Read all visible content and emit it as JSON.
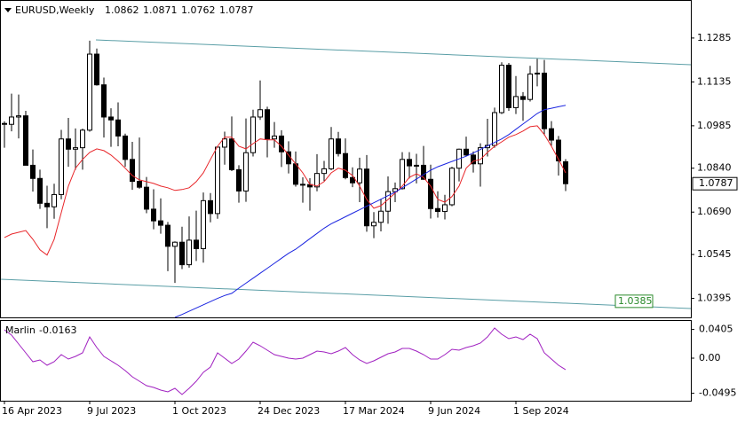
{
  "chart_data": [
    {
      "type": "candlestick",
      "title": "EURUSD,Weekly",
      "categories": [
        "16 Apr 2023",
        null,
        null,
        null,
        null,
        null,
        null,
        null,
        null,
        null,
        null,
        null,
        "9 Jul 2023",
        null,
        null,
        null,
        null,
        null,
        null,
        null,
        null,
        null,
        null,
        null,
        "1 Oct 2023",
        null,
        null,
        null,
        null,
        null,
        null,
        null,
        null,
        null,
        null,
        null,
        "24 Dec 2023",
        null,
        null,
        null,
        null,
        null,
        null,
        null,
        null,
        null,
        null,
        null,
        "17 Mar 2024",
        null,
        null,
        null,
        null,
        null,
        null,
        null,
        null,
        null,
        null,
        null,
        "9 Jun 2024",
        null,
        null,
        null,
        null,
        null,
        null,
        null,
        null,
        null,
        null,
        null,
        "1 Sep 2024",
        null,
        null,
        null,
        null,
        null,
        null,
        null
      ],
      "open": [
        1.0993,
        1.099,
        1.1015,
        1.1019,
        1.085,
        1.0805,
        1.072,
        1.0708,
        1.075,
        1.094,
        1.0905,
        1.091,
        1.097,
        1.123,
        1.1125,
        1.1015,
        1.1005,
        1.095,
        1.087,
        1.0795,
        1.0775,
        1.07,
        1.066,
        1.0645,
        1.0573,
        1.0587,
        1.051,
        1.0594,
        1.0565,
        1.0729,
        1.0685,
        1.0912,
        1.094,
        1.0835,
        1.0762,
        1.0893,
        1.1015,
        1.104,
        1.094,
        1.095,
        1.0896,
        1.0855,
        1.0785,
        1.0784,
        1.0776,
        1.0822,
        1.0838,
        1.094,
        1.089,
        1.0808,
        1.079,
        1.0837,
        1.0643,
        1.0655,
        1.0693,
        1.076,
        1.077,
        1.087,
        1.0848,
        1.085,
        1.0802,
        1.0702,
        1.0692,
        1.0715,
        1.084,
        1.0905,
        1.0885,
        1.0855,
        1.091,
        1.0918,
        1.103,
        1.1192,
        1.1047,
        1.1085,
        1.1075,
        1.1162,
        1.1165,
        1.0975,
        1.0936,
        1.0862
      ],
      "high": [
        1.1,
        1.1095,
        1.1092,
        1.1036,
        1.0904,
        1.0835,
        1.078,
        1.0787,
        1.0971,
        1.1012,
        1.0976,
        1.0975,
        1.1276,
        1.1249,
        1.115,
        1.1045,
        1.1065,
        1.0958,
        1.093,
        1.0945,
        1.081,
        1.0768,
        1.0737,
        1.0656,
        1.059,
        1.064,
        1.0675,
        1.0695,
        1.0757,
        1.0755,
        1.0914,
        1.0965,
        1.1017,
        1.085,
        1.101,
        1.104,
        1.114,
        1.105,
        1.0998,
        1.097,
        1.0932,
        1.0897,
        1.0809,
        1.0806,
        1.0888,
        1.0865,
        1.0981,
        1.0964,
        1.0942,
        1.0843,
        1.0876,
        1.0885,
        1.069,
        1.0735,
        1.0812,
        1.0791,
        1.0895,
        1.0895,
        1.0889,
        1.0916,
        1.0852,
        1.0761,
        1.0749,
        1.0845,
        1.0907,
        1.0948,
        1.0897,
        1.0925,
        1.1009,
        1.1047,
        1.1202,
        1.12,
        1.1155,
        1.11,
        1.119,
        1.1214,
        1.121,
        1.1001,
        1.095,
        1.0871
      ],
      "low": [
        1.091,
        1.0966,
        1.0942,
        1.085,
        1.076,
        1.0701,
        1.0635,
        1.0667,
        1.0734,
        1.0845,
        1.0835,
        1.0835,
        1.0965,
        1.1122,
        1.0945,
        1.0913,
        1.0915,
        1.0845,
        1.0766,
        1.077,
        1.0686,
        1.0631,
        1.0616,
        1.0488,
        1.0448,
        1.0495,
        1.05,
        1.0523,
        1.0517,
        1.0655,
        1.0667,
        1.0852,
        1.083,
        1.0722,
        1.0725,
        1.088,
        1.1005,
        1.0877,
        1.091,
        1.0844,
        1.0822,
        1.0777,
        1.0722,
        1.0695,
        1.0761,
        1.0796,
        1.0833,
        1.088,
        1.0802,
        1.0775,
        1.0724,
        1.0623,
        1.0601,
        1.0624,
        1.065,
        1.0724,
        1.0767,
        1.0805,
        1.0788,
        1.0801,
        1.0668,
        1.0671,
        1.0665,
        1.071,
        1.0795,
        1.088,
        1.0825,
        1.0777,
        1.088,
        1.091,
        1.1025,
        1.1036,
        1.1025,
        1.1002,
        1.1068,
        1.112,
        1.0953,
        1.0917,
        1.0815,
        1.0762
      ],
      "close": [
        1.099,
        1.1015,
        1.1019,
        1.085,
        1.0805,
        1.072,
        1.0708,
        1.075,
        1.094,
        1.0905,
        1.091,
        1.097,
        1.123,
        1.1125,
        1.1015,
        1.1005,
        1.095,
        1.087,
        1.0795,
        1.0775,
        1.07,
        1.066,
        1.0645,
        1.0573,
        1.0587,
        1.051,
        1.0594,
        1.0565,
        1.0729,
        1.0685,
        1.0912,
        1.094,
        1.0835,
        1.0762,
        1.0893,
        1.1015,
        1.104,
        1.094,
        1.095,
        1.0896,
        1.0855,
        1.0785,
        1.0784,
        1.0776,
        1.0822,
        1.0838,
        1.094,
        1.089,
        1.0808,
        1.079,
        1.0837,
        1.0643,
        1.0655,
        1.0693,
        1.076,
        1.077,
        1.087,
        1.0848,
        1.085,
        1.0802,
        1.0702,
        1.0692,
        1.0715,
        1.084,
        1.0905,
        1.0885,
        1.0855,
        1.091,
        1.0918,
        1.103,
        1.1192,
        1.1047,
        1.1085,
        1.1075,
        1.1162,
        1.1165,
        1.0975,
        1.0936,
        1.0865,
        1.0787
      ],
      "up_color": "#ffffff",
      "down_color": "#000000",
      "lines": [
        {
          "color": "#e8262a",
          "values": [
            1.0603,
            1.0615,
            1.0621,
            1.0627,
            1.0597,
            1.0561,
            1.0543,
            1.0597,
            1.0688,
            1.0779,
            1.084,
            1.087,
            1.0894,
            1.0906,
            1.09,
            1.0885,
            1.0864,
            1.084,
            1.0815,
            1.08,
            1.0794,
            1.0788,
            1.0779,
            1.0773,
            1.0764,
            1.0767,
            1.0773,
            1.0794,
            1.0824,
            1.087,
            1.0915,
            1.0946,
            1.0946,
            1.0915,
            1.0906,
            1.0924,
            1.094,
            1.0937,
            1.0937,
            1.0915,
            1.0885,
            1.0855,
            1.0824,
            1.0785,
            1.0779,
            1.0794,
            1.0824,
            1.084,
            1.0833,
            1.0815,
            1.0779,
            1.0733,
            1.0703,
            1.0712,
            1.0733,
            1.0755,
            1.0779,
            1.0809,
            1.0821,
            1.0809,
            1.0779,
            1.0733,
            1.0724,
            1.0743,
            1.0779,
            1.084,
            1.0864,
            1.087,
            1.0894,
            1.0915,
            1.093,
            1.0946,
            1.0955,
            1.0967,
            1.0982,
            1.0985,
            1.0955,
            1.0915,
            1.087,
            1.0824
          ]
        },
        {
          "color": "#1a24e0",
          "values": [
            null,
            null,
            null,
            null,
            null,
            null,
            null,
            null,
            null,
            null,
            null,
            null,
            null,
            null,
            null,
            null,
            null,
            null,
            null,
            null,
            null,
            null,
            null,
            null,
            1.033,
            1.034,
            1.0351,
            1.0362,
            1.0373,
            1.0384,
            1.0395,
            1.0405,
            1.0412,
            1.043,
            1.0447,
            1.0464,
            1.0481,
            1.0498,
            1.0515,
            1.0532,
            1.0549,
            1.0563,
            1.0581,
            1.0599,
            1.0617,
            1.0635,
            1.065,
            1.0662,
            1.0674,
            1.0686,
            1.0698,
            1.071,
            1.0722,
            1.0734,
            1.0746,
            1.0758,
            1.0773,
            1.0788,
            1.0803,
            1.0818,
            1.0833,
            1.0845,
            1.0854,
            1.0863,
            1.0872,
            1.0881,
            1.0892,
            1.0904,
            1.0916,
            1.0928,
            1.094,
            1.0955,
            1.0973,
            1.0991,
            1.1009,
            1.1027,
            1.104,
            1.1045,
            1.105,
            1.1055
          ]
        }
      ],
      "price_labels": [
        {
          "value": 1.0385,
          "color": "#2a8a2a"
        }
      ],
      "ylim": [
        1.033,
        1.1415
      ],
      "yticks": [
        1.1285,
        1.1135,
        1.0985,
        {
          "value": 1.084,
          "label": "1.0840"
        },
        {
          "value": 1.069,
          "label": "1.0690"
        },
        1.0545,
        1.0395
      ]
    },
    {
      "type": "line",
      "title": "Marlin",
      "color": "#a020c0",
      "values": [
        0.04,
        0.0325,
        0.02,
        0.0075,
        -0.005,
        -0.0025,
        -0.01,
        -0.005,
        0.005,
        -0.0013,
        0.0025,
        0.0075,
        0.03,
        0.015,
        0.0025,
        -0.0038,
        -0.01,
        -0.0175,
        -0.0263,
        -0.0325,
        -0.0388,
        -0.0413,
        -0.045,
        -0.0475,
        -0.0425,
        -0.0513,
        -0.0425,
        -0.0325,
        -0.02,
        -0.0125,
        0.0075,
        0,
        -0.0075,
        -0.0013,
        0.01,
        0.0225,
        0.0175,
        0.0113,
        0.005,
        0.0025,
        0,
        -0.0013,
        0,
        0.005,
        0.01,
        0.0088,
        0.0063,
        0.01,
        0.015,
        0.005,
        -0.0025,
        -0.0075,
        -0.0038,
        0.0013,
        0.0063,
        0.0088,
        0.0138,
        0.0138,
        0.01,
        0.005,
        -0.0013,
        -0.0013,
        0.005,
        0.0125,
        0.0113,
        0.015,
        0.0175,
        0.0213,
        0.03,
        0.0425,
        0.0338,
        0.0275,
        0.03,
        0.0263,
        0.0338,
        0.0275,
        0.0075,
        -0.0013,
        -0.01,
        -0.0163
      ],
      "ylim": [
        -0.06,
        0.0525
      ],
      "yticks": [
        0.0405,
        {
          "value": 0,
          "label": "0.00"
        },
        -0.0495
      ]
    }
  ]
}
